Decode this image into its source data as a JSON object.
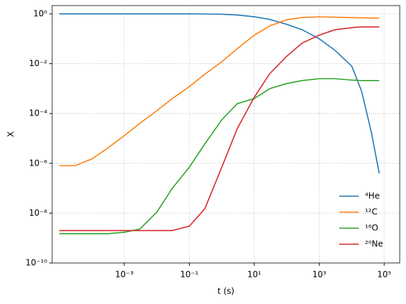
{
  "chart_data": {
    "type": "line",
    "x_label": "t (s)",
    "y_label": "X",
    "x_scale": "log",
    "y_scale": "log",
    "grid": true,
    "legend": "lower right",
    "xlim": [
      6e-06,
      300000.0
    ],
    "ylim": [
      1e-10,
      2.16
    ],
    "xticks": [
      {
        "value": 0.001,
        "label": "10⁻³"
      },
      {
        "value": 0.1,
        "label": "10⁻¹"
      },
      {
        "value": 10,
        "label": "10¹"
      },
      {
        "value": 1000,
        "label": "10³"
      },
      {
        "value": 100000,
        "label": "10⁵"
      }
    ],
    "yticks": [
      {
        "value": 1e-10,
        "label": "10⁻¹⁰"
      },
      {
        "value": 1e-08,
        "label": "10⁻⁸"
      },
      {
        "value": 1e-06,
        "label": "10⁻⁶"
      },
      {
        "value": 0.0001,
        "label": "10⁻⁴"
      },
      {
        "value": 0.01,
        "label": "10⁻²"
      },
      {
        "value": 1,
        "label": "10⁰"
      }
    ],
    "x": [
      1e-05,
      3e-05,
      0.0001,
      0.0003,
      0.001,
      0.003,
      0.01,
      0.03,
      0.1,
      0.3,
      1,
      3,
      10,
      30,
      100,
      300,
      1000,
      3000,
      10000,
      20000,
      40000,
      70000
    ],
    "series": [
      {
        "name": "⁴He",
        "color": "#1f77b4",
        "values": [
          1,
          1,
          1,
          1,
          1,
          1,
          1,
          1,
          1,
          0.99,
          0.97,
          0.9,
          0.77,
          0.6,
          0.38,
          0.23,
          0.1,
          0.035,
          0.008,
          0.0008,
          1.8e-05,
          4e-07
        ]
      },
      {
        "name": "¹²C",
        "color": "#ff7f0e",
        "values": [
          8e-07,
          8e-07,
          1.5e-06,
          4e-06,
          1.3e-05,
          4e-05,
          0.00013,
          0.0004,
          0.0012,
          0.0038,
          0.012,
          0.04,
          0.14,
          0.33,
          0.58,
          0.72,
          0.76,
          0.74,
          0.71,
          0.7,
          0.68,
          0.67
        ]
      },
      {
        "name": "¹⁶O",
        "color": "#2ca02c",
        "values": [
          1.5e-09,
          1.5e-09,
          1.5e-09,
          1.5e-09,
          1.7e-09,
          2.3e-09,
          1.1e-08,
          1e-07,
          7e-07,
          6e-06,
          5.6e-05,
          0.00025,
          0.0004,
          0.001,
          0.0016,
          0.0021,
          0.0025,
          0.0025,
          0.0022,
          0.0021,
          0.0021,
          0.0021
        ]
      },
      {
        "name": "²⁰Ne",
        "color": "#d62728",
        "values": [
          2e-09,
          2e-09,
          2e-09,
          2e-09,
          2e-09,
          2e-09,
          2e-09,
          2e-09,
          3e-09,
          1.5e-08,
          7e-07,
          2.5e-05,
          0.00045,
          0.004,
          0.02,
          0.068,
          0.14,
          0.23,
          0.28,
          0.3,
          0.3,
          0.3
        ]
      }
    ]
  }
}
